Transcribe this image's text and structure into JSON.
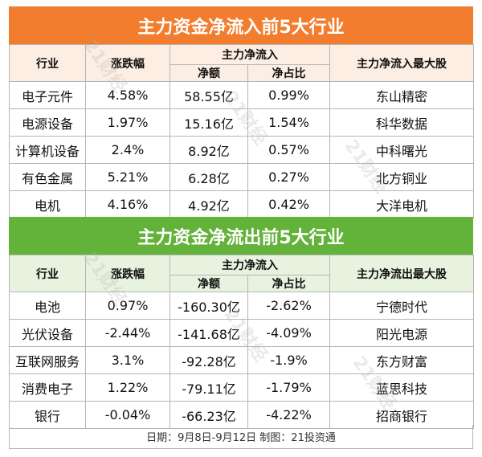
{
  "inflow": {
    "title": "主力资金净流入前5大行业",
    "headers": {
      "industry": "行业",
      "change": "涨跌幅",
      "group": "主力净流入",
      "amount": "净额",
      "ratio": "净占比",
      "top_stock": "主力净流入最大股"
    },
    "rows": [
      {
        "industry": "电子元件",
        "change": "4.58%",
        "amount": "58.55亿",
        "ratio": "0.99%",
        "stock": "东山精密"
      },
      {
        "industry": "电源设备",
        "change": "1.97%",
        "amount": "15.16亿",
        "ratio": "1.54%",
        "stock": "科华数据"
      },
      {
        "industry": "计算机设备",
        "change": "2.4%",
        "amount": "8.92亿",
        "ratio": "0.57%",
        "stock": "中科曙光"
      },
      {
        "industry": "有色金属",
        "change": "5.21%",
        "amount": "6.28亿",
        "ratio": "0.27%",
        "stock": "北方铜业"
      },
      {
        "industry": "电机",
        "change": "4.16%",
        "amount": "4.92亿",
        "ratio": "0.42%",
        "stock": "大洋电机"
      }
    ]
  },
  "outflow": {
    "title": "主力资金净流出前5大行业",
    "headers": {
      "industry": "行业",
      "change": "涨跌幅",
      "group": "主力净流入",
      "amount": "净额",
      "ratio": "净占比",
      "top_stock": "主力净流出最大股"
    },
    "rows": [
      {
        "industry": "电池",
        "change": "0.97%",
        "amount": "-160.30亿",
        "ratio": "-2.62%",
        "stock": "宁德时代"
      },
      {
        "industry": "光伏设备",
        "change": "-2.44%",
        "amount": "-141.68亿",
        "ratio": "-4.09%",
        "stock": "阳光电源"
      },
      {
        "industry": "互联网服务",
        "change": "3.1%",
        "amount": "-92.28亿",
        "ratio": "-1.9%",
        "stock": "东方财富"
      },
      {
        "industry": "消费电子",
        "change": "1.22%",
        "amount": "-79.11亿",
        "ratio": "-1.79%",
        "stock": "蓝思科技"
      },
      {
        "industry": "银行",
        "change": "-0.04%",
        "amount": "-66.23亿",
        "ratio": "-4.22%",
        "stock": "招商银行"
      }
    ]
  },
  "footer": "日期：9月8日-9月12日 制图：21投资通",
  "watermark": "21财经",
  "colors": {
    "inflow_banner": "#f27d2f",
    "outflow_banner": "#63b23a"
  }
}
